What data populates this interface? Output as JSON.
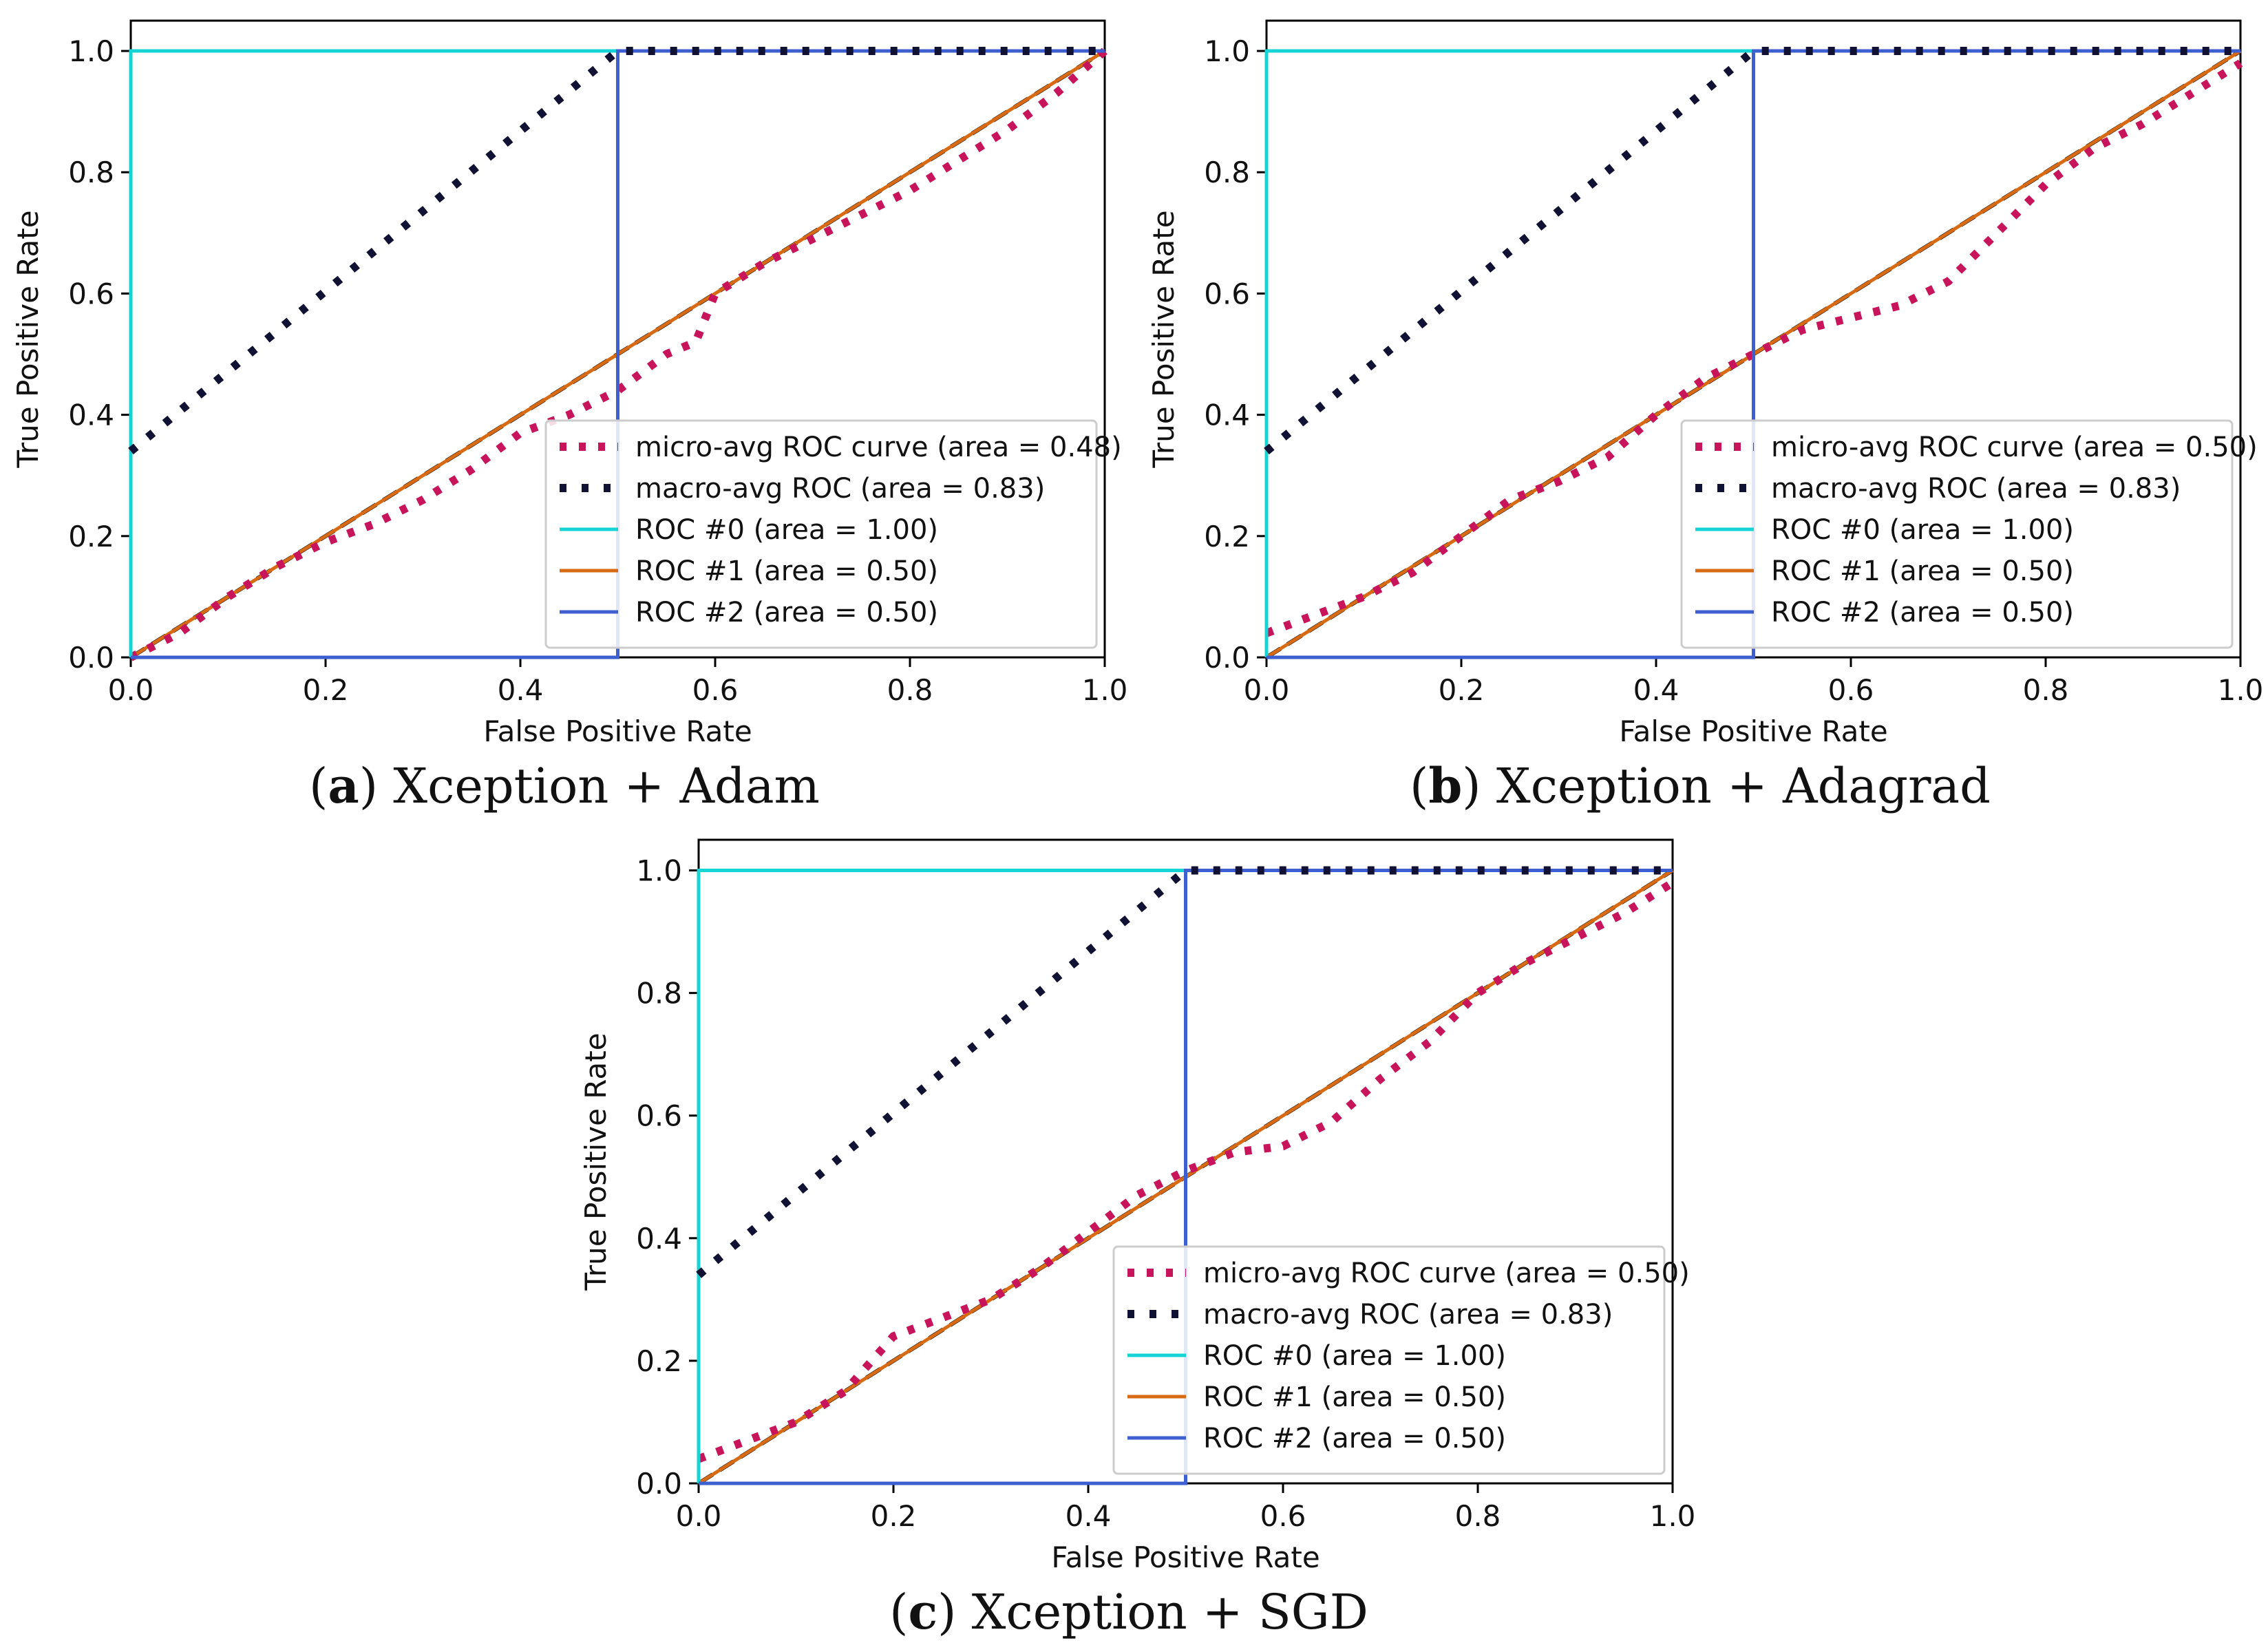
{
  "colors": {
    "micro": "#c8145a",
    "macro": "#111133",
    "roc0": "#17d4d4",
    "roc1": "#d86a14",
    "roc2": "#3e5fd0",
    "chance": "#000000"
  },
  "chart_data": [
    {
      "id": "a",
      "type": "line",
      "caption_letter": "a",
      "caption_text": "Xception + Adam",
      "xlabel": "False Positive Rate",
      "ylabel": "True Positive Rate",
      "xlim": [
        0.0,
        1.0
      ],
      "ylim": [
        0.0,
        1.05
      ],
      "xticks": [
        "0.0",
        "0.2",
        "0.4",
        "0.6",
        "0.8",
        "1.0"
      ],
      "yticks": [
        "0.0",
        "0.2",
        "0.4",
        "0.6",
        "0.8",
        "1.0"
      ],
      "legend_position": "lower-right",
      "series": [
        {
          "name": "micro-avg ROC curve (area = 0.48)",
          "style": "micro",
          "x": [
            0.0,
            0.05,
            0.1,
            0.15,
            0.2,
            0.25,
            0.3,
            0.35,
            0.4,
            0.45,
            0.5,
            0.55,
            0.58,
            0.6,
            0.65,
            0.7,
            0.75,
            0.8,
            0.85,
            0.9,
            0.95,
            1.0
          ],
          "y": [
            0.0,
            0.04,
            0.1,
            0.15,
            0.19,
            0.22,
            0.26,
            0.31,
            0.37,
            0.4,
            0.44,
            0.5,
            0.52,
            0.6,
            0.65,
            0.69,
            0.73,
            0.77,
            0.82,
            0.87,
            0.93,
            1.0
          ]
        },
        {
          "name": "macro-avg ROC (area = 0.83)",
          "style": "macro",
          "x": [
            0.0,
            0.5,
            1.0
          ],
          "y": [
            0.34,
            1.0,
            1.0
          ]
        },
        {
          "name": "ROC #0 (area = 1.00)",
          "style": "roc0",
          "x": [
            0.0,
            0.0,
            1.0
          ],
          "y": [
            0.0,
            1.0,
            1.0
          ]
        },
        {
          "name": "ROC #1 (area = 0.50)",
          "style": "roc1",
          "x": [
            0.0,
            1.0
          ],
          "y": [
            0.0,
            1.0
          ]
        },
        {
          "name": "ROC #2 (area = 0.50)",
          "style": "roc2",
          "x": [
            0.0,
            0.5,
            0.5,
            1.0
          ],
          "y": [
            0.0,
            0.0,
            1.0,
            1.0
          ]
        }
      ]
    },
    {
      "id": "b",
      "type": "line",
      "caption_letter": "b",
      "caption_text": "Xception + Adagrad",
      "xlabel": "False Positive Rate",
      "ylabel": "True Positive Rate",
      "xlim": [
        0.0,
        1.0
      ],
      "ylim": [
        0.0,
        1.05
      ],
      "xticks": [
        "0.0",
        "0.2",
        "0.4",
        "0.6",
        "0.8",
        "1.0"
      ],
      "yticks": [
        "0.0",
        "0.2",
        "0.4",
        "0.6",
        "0.8",
        "1.0"
      ],
      "legend_position": "lower-right",
      "series": [
        {
          "name": "micro-avg ROC curve (area = 0.50)",
          "style": "micro",
          "x": [
            0.0,
            0.05,
            0.1,
            0.15,
            0.2,
            0.25,
            0.3,
            0.35,
            0.4,
            0.45,
            0.5,
            0.55,
            0.6,
            0.65,
            0.7,
            0.75,
            0.8,
            0.85,
            0.9,
            0.95,
            1.0
          ],
          "y": [
            0.04,
            0.07,
            0.1,
            0.14,
            0.2,
            0.26,
            0.29,
            0.33,
            0.4,
            0.46,
            0.5,
            0.54,
            0.56,
            0.58,
            0.62,
            0.7,
            0.78,
            0.84,
            0.88,
            0.93,
            0.98
          ]
        },
        {
          "name": "macro-avg ROC (area = 0.83)",
          "style": "macro",
          "x": [
            0.0,
            0.5,
            1.0
          ],
          "y": [
            0.34,
            1.0,
            1.0
          ]
        },
        {
          "name": "ROC #0 (area = 1.00)",
          "style": "roc0",
          "x": [
            0.0,
            0.0,
            1.0
          ],
          "y": [
            0.0,
            1.0,
            1.0
          ]
        },
        {
          "name": "ROC #1 (area = 0.50)",
          "style": "roc1",
          "x": [
            0.0,
            1.0
          ],
          "y": [
            0.0,
            1.0
          ]
        },
        {
          "name": "ROC #2 (area = 0.50)",
          "style": "roc2",
          "x": [
            0.0,
            0.5,
            0.5,
            1.0
          ],
          "y": [
            0.0,
            0.0,
            1.0,
            1.0
          ]
        }
      ]
    },
    {
      "id": "c",
      "type": "line",
      "caption_letter": "c",
      "caption_text": "Xception + SGD",
      "xlabel": "False Positive Rate",
      "ylabel": "True Positive Rate",
      "xlim": [
        0.0,
        1.0
      ],
      "ylim": [
        0.0,
        1.05
      ],
      "xticks": [
        "0.0",
        "0.2",
        "0.4",
        "0.6",
        "0.8",
        "1.0"
      ],
      "yticks": [
        "0.0",
        "0.2",
        "0.4",
        "0.6",
        "0.8",
        "1.0"
      ],
      "legend_position": "lower-right",
      "series": [
        {
          "name": "micro-avg ROC curve (area = 0.50)",
          "style": "micro",
          "x": [
            0.0,
            0.05,
            0.1,
            0.15,
            0.2,
            0.25,
            0.3,
            0.35,
            0.4,
            0.45,
            0.5,
            0.55,
            0.6,
            0.65,
            0.7,
            0.75,
            0.8,
            0.85,
            0.9,
            0.95,
            1.0
          ],
          "y": [
            0.04,
            0.07,
            0.1,
            0.15,
            0.24,
            0.27,
            0.3,
            0.35,
            0.41,
            0.47,
            0.51,
            0.54,
            0.55,
            0.59,
            0.66,
            0.72,
            0.8,
            0.85,
            0.89,
            0.93,
            0.98
          ]
        },
        {
          "name": "macro-avg ROC (area = 0.83)",
          "style": "macro",
          "x": [
            0.0,
            0.5,
            1.0
          ],
          "y": [
            0.34,
            1.0,
            1.0
          ]
        },
        {
          "name": "ROC #0 (area = 1.00)",
          "style": "roc0",
          "x": [
            0.0,
            0.0,
            1.0
          ],
          "y": [
            0.0,
            1.0,
            1.0
          ]
        },
        {
          "name": "ROC #1 (area = 0.50)",
          "style": "roc1",
          "x": [
            0.0,
            1.0
          ],
          "y": [
            0.0,
            1.0
          ]
        },
        {
          "name": "ROC #2 (area = 0.50)",
          "style": "roc2",
          "x": [
            0.0,
            0.5,
            0.5,
            1.0
          ],
          "y": [
            0.0,
            0.0,
            1.0,
            1.0
          ]
        }
      ]
    }
  ]
}
